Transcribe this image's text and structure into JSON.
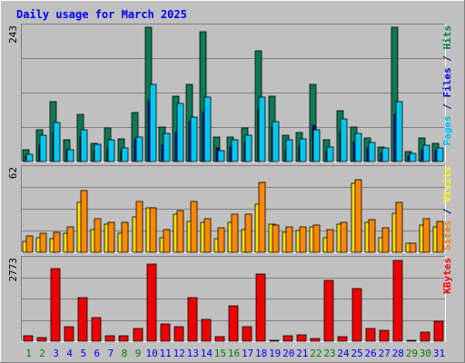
{
  "chart_data": {
    "type": "bar",
    "title": "Daily usage for March 2025",
    "days": [
      "1",
      "2",
      "3",
      "4",
      "5",
      "6",
      "7",
      "8",
      "9",
      "10",
      "11",
      "12",
      "13",
      "14",
      "15",
      "16",
      "17",
      "18",
      "19",
      "20",
      "21",
      "22",
      "23",
      "24",
      "25",
      "26",
      "27",
      "28",
      "29",
      "30",
      "31"
    ],
    "weekend_days": [
      "1",
      "2",
      "8",
      "9",
      "15",
      "16",
      "22",
      "23",
      "29",
      "30"
    ],
    "panels": [
      {
        "id": "hits-files-pages",
        "ymax_label": "243",
        "ymax": 243,
        "side_labels": [
          {
            "text": "Pages",
            "color": "#00c0ff"
          },
          {
            "text": " / ",
            "color": "#000080"
          },
          {
            "text": "Files",
            "color": "#0000ff"
          },
          {
            "text": " / ",
            "color": "#000080"
          },
          {
            "text": "Hits",
            "color": "#008040"
          }
        ],
        "series": [
          {
            "name": "Hits",
            "color": "#0f7a55",
            "values": [
              22,
              57,
              108,
              40,
              85,
              33,
              61,
              41,
              89,
              243,
              63,
              119,
              140,
              235,
              45,
              45,
              60,
              201,
              118,
              47,
              52,
              140,
              39,
              92,
              63,
              42,
              26,
              243,
              18,
              42,
              33
            ]
          },
          {
            "name": "Files",
            "color": "#1010e0",
            "values": [
              12,
              30,
              52,
              22,
              44,
              20,
              25,
              20,
              40,
              110,
              30,
              52,
              72,
              90,
              24,
              26,
              35,
              95,
              62,
              22,
              26,
              66,
              20,
              52,
              36,
              24,
              14,
              85,
              10,
              22,
              20
            ]
          },
          {
            "name": "Pages",
            "color": "#00c8f0",
            "values": [
              13,
              48,
              71,
              22,
              58,
              31,
              39,
              24,
              44,
              140,
              51,
              105,
              80,
              117,
              20,
              40,
              47,
              117,
              72,
              40,
              41,
              57,
              26,
              77,
              51,
              35,
              24,
              108,
              14,
              30,
              25
            ]
          }
        ]
      },
      {
        "id": "visits-sites",
        "ymax_label": "62",
        "ymax": 62,
        "side_labels": [
          {
            "text": "Sites",
            "color": "#ff8000"
          },
          {
            "text": " / ",
            "color": "#000080"
          },
          {
            "text": "Visits",
            "color": "#ffff00"
          }
        ],
        "series": [
          {
            "name": "Visits",
            "color": "#ffe000",
            "values": [
              8,
              11,
              10,
              14,
              37,
              17,
              21,
              14,
              26,
              33,
              11,
              28,
              23,
              22,
              10,
              22,
              17,
              36,
              21,
              15,
              16,
              19,
              11,
              21,
              51,
              22,
              11,
              29,
              7,
              20,
              19
            ]
          },
          {
            "name": "Sites",
            "color": "#ff8800",
            "values": [
              12,
              14,
              15,
              19,
              46,
              25,
              22,
              22,
              38,
              33,
              17,
              31,
              38,
              25,
              18,
              28,
              28,
              52,
              20,
              19,
              19,
              20,
              17,
              22,
              54,
              24,
              18,
              37,
              7,
              25,
              23
            ]
          }
        ]
      },
      {
        "id": "kbytes",
        "ymax_label": "2773",
        "ymax": 2773,
        "side_labels": [
          {
            "text": "KBytes",
            "color": "#ff0000"
          }
        ],
        "series": [
          {
            "name": "KBytes",
            "color": "#ee0000",
            "values": [
              180,
              120,
              2450,
              480,
              1480,
              800,
              180,
              200,
              420,
              2620,
              590,
              480,
              1480,
              740,
              140,
              1200,
              480,
              2270,
              30,
              180,
              230,
              80,
              2060,
              140,
              1780,
              440,
              370,
              2750,
              20,
              300,
              680
            ]
          }
        ]
      }
    ],
    "colors": {
      "background": "#c0c0c0",
      "plot_area": "#c0c0c0",
      "title": "#0000ff",
      "weekday_label": "#0000ff",
      "weekend_label": "#008000"
    }
  }
}
